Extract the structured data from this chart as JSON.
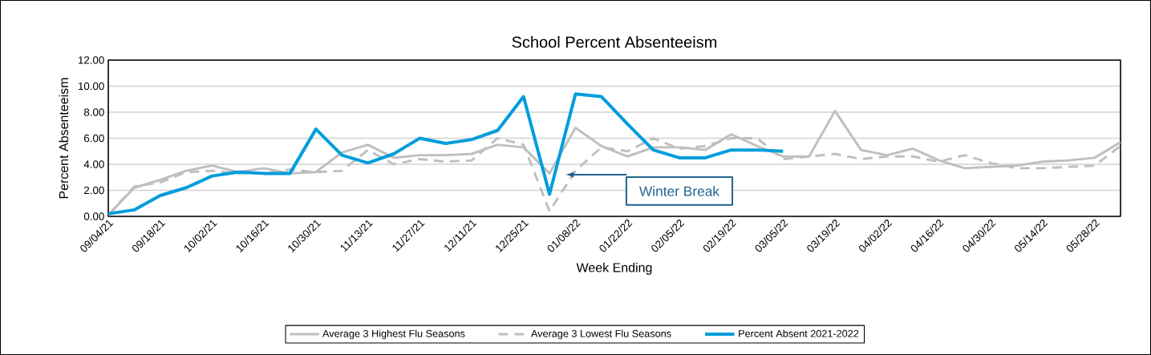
{
  "chart_data": {
    "type": "line",
    "title": "School Percent Absenteeism",
    "xlabel": "Week Ending",
    "ylabel": "Percent Absenteeism",
    "categories": [
      "09/04/21",
      null,
      "09/18/21",
      null,
      "10/02/21",
      null,
      "10/16/21",
      null,
      "10/30/21",
      null,
      "11/13/21",
      null,
      "11/27/21",
      null,
      "12/11/21",
      null,
      "12/25/21",
      null,
      "01/08/22",
      null,
      "01/22/22",
      null,
      "02/05/22",
      null,
      "02/19/22",
      null,
      "03/05/22",
      null,
      "03/19/22",
      null,
      "04/02/22",
      null,
      "04/16/22",
      null,
      "04/30/22",
      null,
      "05/14/22",
      null,
      "05/28/22",
      null
    ],
    "series": [
      {
        "name": "Average 3 Highest Flu Seasons",
        "color": "#bfbfbf",
        "line_style": "solid",
        "values": [
          0.1,
          2.2,
          2.8,
          3.5,
          3.9,
          3.4,
          3.7,
          3.3,
          3.4,
          4.9,
          5.5,
          4.5,
          4.7,
          4.7,
          4.8,
          5.5,
          5.3,
          3.3,
          6.8,
          5.4,
          4.6,
          5.3,
          5.3,
          5.1,
          6.3,
          5.4,
          4.6,
          4.6,
          8.1,
          5.1,
          4.7,
          5.2,
          4.3,
          3.7,
          3.8,
          3.9,
          4.2,
          4.3,
          4.5,
          5.7
        ]
      },
      {
        "name": "Average 3 Lowest Flu Seasons",
        "color": "#bfbfbf",
        "line_style": "dashed",
        "values": [
          0.1,
          2.3,
          2.6,
          3.4,
          3.5,
          3.3,
          3.3,
          3.6,
          3.4,
          3.5,
          5.1,
          4.0,
          4.4,
          4.2,
          4.3,
          6.0,
          5.5,
          0.4,
          3.5,
          5.3,
          5.0,
          6.0,
          5.2,
          5.4,
          6.0,
          6.0,
          4.4,
          4.6,
          4.8,
          4.4,
          4.6,
          4.6,
          4.2,
          4.7,
          4.1,
          3.7,
          3.7,
          3.8,
          3.9,
          5.4
        ]
      },
      {
        "name": "Percent Absent 2021-2022",
        "color": "#009ddc",
        "line_style": "solid",
        "values": [
          0.2,
          0.5,
          1.6,
          2.2,
          3.1,
          3.4,
          3.3,
          3.3,
          6.7,
          4.7,
          4.1,
          4.8,
          6.0,
          5.6,
          5.9,
          6.6,
          9.2,
          1.7,
          9.4,
          9.2,
          7.1,
          5.1,
          4.5,
          4.5,
          5.1,
          5.1,
          5.0,
          null,
          null,
          null,
          null,
          null,
          null,
          null,
          null,
          null,
          null,
          null,
          null,
          null
        ]
      }
    ],
    "ylim": [
      0,
      12
    ],
    "yticks": [
      {
        "value": 0,
        "label": "0.00"
      },
      {
        "value": 2,
        "label": "2.00"
      },
      {
        "value": 4,
        "label": "4.00"
      },
      {
        "value": 6,
        "label": "6.00"
      },
      {
        "value": 8,
        "label": "8.00"
      },
      {
        "value": 10,
        "label": "10.00"
      },
      {
        "value": 12,
        "label": "12.00"
      }
    ],
    "grid": "y",
    "legend": "bottom",
    "annotations": [
      "Winter Break"
    ]
  }
}
